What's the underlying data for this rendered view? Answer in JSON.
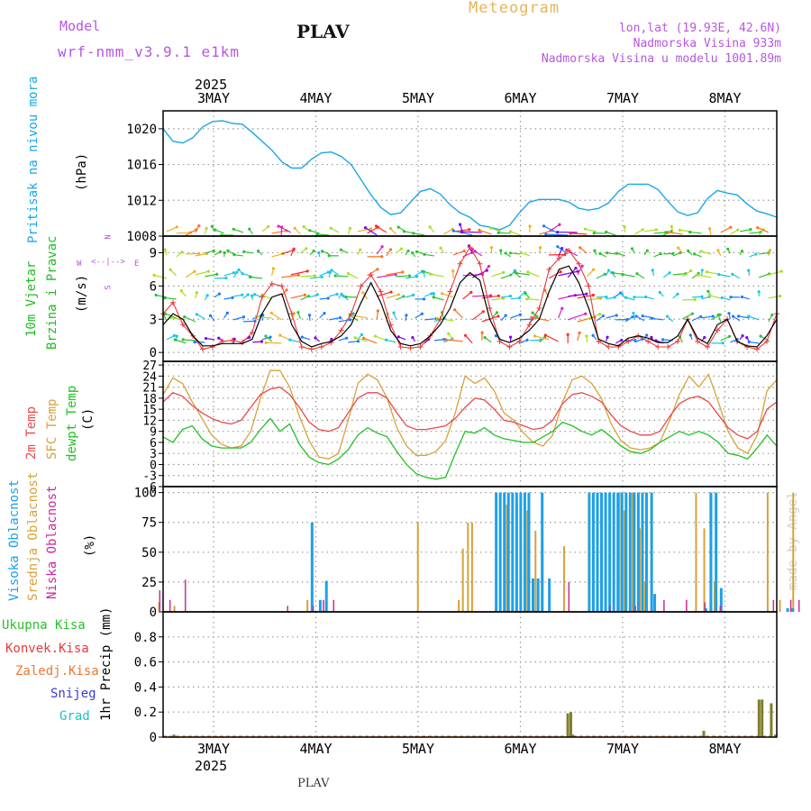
{
  "header": {
    "model_label": "Model",
    "model_name": "wrf-nmm_v3.9.1 e1km",
    "station": "PLAV",
    "title": "Meteogram",
    "coords": "lon,lat (19.93E, 42.6N)",
    "elevation": "Nadmorska Visina 933m",
    "model_elevation": "Nadmorska Visina u modelu 1001.89m",
    "year": "2025"
  },
  "footer": {
    "station": "PLAV",
    "credit": "made by Angel"
  },
  "colors": {
    "pressure": "#1aa7e6",
    "wind_label": "#22bb22",
    "temp2m": "#e84a4a",
    "sfc": "#d9a13a",
    "dew": "#22c022",
    "high_cloud": "#1ea0e8",
    "mid_cloud": "#d6a23a",
    "low_cloud": "#cc2a9a",
    "total_precip": "#2bbf2b",
    "conv": "#e83a3a",
    "freezing": "#ee7733",
    "snow": "#3b3bd8",
    "hail": "#1fc2c2",
    "precip_bar": "#7f7f2a",
    "purple_text": "#b657e0",
    "gold_text": "#e8b455"
  },
  "panels": {
    "pressure": {
      "label": "Pritisak na nivou mora",
      "unit": "(hPa)"
    },
    "wind": {
      "label1": "10m Vjetar",
      "label2": "Brzina i Pravac",
      "unit": "(m/s)",
      "compass": {
        "n": "N",
        "s": "S",
        "w": "W",
        "e": "E"
      }
    },
    "temp": {
      "label1": "2m Temp",
      "label2": "SFC Temp",
      "label3": "dewpt Temp",
      "unit": "(C)"
    },
    "cloud": {
      "label1": "Visoka Oblacnost",
      "label2": "Srednja Oblacnost",
      "label3": "Niska Oblacnost",
      "unit": "(%)"
    },
    "precip": {
      "unit": "1hr Precip (mm)",
      "legend": [
        "Ukupna Kisa",
        "Konvek.Kisa",
        "Zaledj.Kisa",
        "Snijeg",
        "Grad"
      ]
    }
  },
  "chart_data": {
    "type": "line",
    "x_days": [
      "3MAY",
      "4MAY",
      "5MAY",
      "6MAY",
      "7MAY",
      "8MAY"
    ],
    "pressure": {
      "ylim": [
        1008,
        1022
      ],
      "yticks": [
        "1008",
        "1012",
        "1016",
        "1020"
      ],
      "values": [
        1020.0,
        1018.6,
        1018.4,
        1019.0,
        1020.2,
        1020.8,
        1020.9,
        1020.6,
        1020.5,
        1019.6,
        1018.6,
        1017.6,
        1016.3,
        1015.6,
        1015.6,
        1016.6,
        1017.3,
        1017.4,
        1016.9,
        1016.0,
        1014.3,
        1012.6,
        1011.2,
        1010.4,
        1010.6,
        1011.8,
        1013.0,
        1013.3,
        1012.7,
        1011.5,
        1010.6,
        1010.1,
        1009.2,
        1009.0,
        1008.7,
        1009.2,
        1010.6,
        1011.8,
        1012.1,
        1012.1,
        1012.1,
        1011.8,
        1011.1,
        1010.9,
        1011.1,
        1011.7,
        1013.0,
        1013.8,
        1013.8,
        1013.8,
        1013.2,
        1011.9,
        1010.7,
        1010.3,
        1010.6,
        1012.2,
        1013.1,
        1012.8,
        1012.6,
        1011.6,
        1010.8,
        1010.5,
        1010.1
      ]
    },
    "wind": {
      "ylim": [
        -0.8,
        10.5
      ],
      "yticks": [
        "0",
        "3",
        "6",
        "9"
      ],
      "speed": [
        2.5,
        3.5,
        3.0,
        1.5,
        0.6,
        0.6,
        0.8,
        0.8,
        0.8,
        1.2,
        3.5,
        5.0,
        5.3,
        2.5,
        1.0,
        0.5,
        0.8,
        1.0,
        1.5,
        2.5,
        4.5,
        6.3,
        4.5,
        2.0,
        0.8,
        0.6,
        0.8,
        1.5,
        2.5,
        4.0,
        6.3,
        7.2,
        6.5,
        3.0,
        1.2,
        0.9,
        1.3,
        2.0,
        3.0,
        5.5,
        7.5,
        7.8,
        6.3,
        4.0,
        1.2,
        0.8,
        0.6,
        1.3,
        1.5,
        1.3,
        0.9,
        0.9,
        1.5,
        3.0,
        1.3,
        0.8,
        2.5,
        3.0,
        1.0,
        0.6,
        0.5,
        1.5,
        3.0
      ],
      "gust": [
        3.5,
        4.5,
        2.5,
        1.5,
        0.3,
        0.5,
        1.0,
        1.1,
        0.9,
        1.8,
        5.0,
        6.2,
        6.0,
        3.5,
        0.5,
        0.3,
        0.5,
        0.9,
        2.0,
        3.5,
        6.0,
        7.0,
        5.5,
        2.5,
        0.5,
        0.4,
        0.5,
        1.5,
        3.0,
        5.5,
        8.0,
        9.5,
        8.0,
        4.0,
        1.0,
        0.5,
        1.0,
        2.5,
        4.0,
        7.5,
        8.5,
        9.2,
        8.0,
        6.0,
        1.0,
        0.5,
        0.5,
        1.0,
        1.5,
        1.0,
        0.5,
        0.5,
        1.0,
        3.0,
        1.0,
        0.5,
        2.0,
        3.0,
        1.0,
        0.5,
        0.3,
        1.0,
        3.5
      ]
    },
    "temperature": {
      "ylim": [
        -6,
        28
      ],
      "yticks": [
        "-6",
        "-3",
        "0",
        "3",
        "6",
        "9",
        "12",
        "15",
        "18",
        "21",
        "24",
        "27"
      ],
      "t2m": [
        17.0,
        19.5,
        18.5,
        16.0,
        14.0,
        12.5,
        11.5,
        11.0,
        12.0,
        15.5,
        19.0,
        20.5,
        21.0,
        19.0,
        15.5,
        11.5,
        9.5,
        9.0,
        10.0,
        14.0,
        18.0,
        19.5,
        19.5,
        18.0,
        14.0,
        10.5,
        9.5,
        9.5,
        10.0,
        10.5,
        12.5,
        15.5,
        18.0,
        17.5,
        15.0,
        12.0,
        11.5,
        10.5,
        9.5,
        10.0,
        12.0,
        16.5,
        19.0,
        19.5,
        18.5,
        17.0,
        13.5,
        10.5,
        9.0,
        8.0,
        8.0,
        9.0,
        13.0,
        16.5,
        18.0,
        18.5,
        17.0,
        13.5,
        10.0,
        8.0,
        7.0,
        9.0,
        15.0,
        17.0
      ],
      "sfc": [
        19.0,
        23.5,
        22.0,
        17.0,
        12.5,
        8.0,
        5.5,
        4.5,
        5.0,
        9.0,
        18.0,
        25.5,
        25.5,
        21.0,
        13.0,
        6.5,
        2.0,
        1.5,
        3.0,
        12.0,
        22.0,
        24.5,
        23.0,
        18.0,
        10.0,
        5.0,
        2.5,
        2.5,
        3.5,
        6.5,
        14.0,
        24.0,
        22.0,
        23.5,
        20.0,
        14.0,
        12.0,
        8.5,
        6.0,
        5.0,
        8.0,
        17.0,
        23.0,
        24.0,
        22.0,
        18.0,
        11.0,
        6.5,
        4.5,
        4.0,
        4.5,
        6.0,
        12.0,
        19.0,
        24.0,
        21.0,
        24.5,
        17.0,
        9.0,
        4.5,
        3.0,
        8.0,
        20.0,
        23.0
      ],
      "dew": [
        7.5,
        6.0,
        9.5,
        10.5,
        7.0,
        5.0,
        4.5,
        4.5,
        4.5,
        6.0,
        9.5,
        12.5,
        9.0,
        11.0,
        5.5,
        2.0,
        0.5,
        0.0,
        1.5,
        4.0,
        8.0,
        10.0,
        8.5,
        7.5,
        3.5,
        0.0,
        -2.5,
        -3.5,
        -4.0,
        -3.5,
        3.0,
        9.0,
        8.5,
        10.0,
        8.0,
        7.0,
        6.5,
        6.0,
        6.0,
        7.5,
        9.0,
        11.5,
        10.5,
        9.0,
        8.0,
        9.5,
        7.5,
        5.0,
        3.5,
        3.0,
        4.0,
        6.0,
        7.5,
        9.0,
        8.0,
        9.0,
        8.0,
        6.0,
        3.0,
        2.5,
        1.5,
        4.5,
        8.0,
        5.0
      ]
    },
    "clouds": {
      "ylim": [
        0,
        105
      ],
      "yticks": [
        "0",
        "25",
        "50",
        "75",
        "100"
      ],
      "high": [
        [
          0.95,
          75
        ],
        [
          1.03,
          10
        ],
        [
          1.09,
          26
        ],
        [
          2.75,
          100
        ],
        [
          2.79,
          100
        ],
        [
          2.83,
          100
        ],
        [
          2.87,
          100
        ],
        [
          2.91,
          100
        ],
        [
          2.95,
          100
        ],
        [
          2.99,
          100
        ],
        [
          3.03,
          100
        ],
        [
          3.07,
          100
        ],
        [
          3.11,
          28
        ],
        [
          3.16,
          28
        ],
        [
          3.2,
          100
        ],
        [
          3.27,
          28
        ],
        [
          3.66,
          100
        ],
        [
          3.7,
          100
        ],
        [
          3.74,
          100
        ],
        [
          3.78,
          100
        ],
        [
          3.82,
          100
        ],
        [
          3.86,
          100
        ],
        [
          3.9,
          100
        ],
        [
          3.94,
          100
        ],
        [
          3.98,
          100
        ],
        [
          4.02,
          100
        ],
        [
          4.06,
          100
        ],
        [
          4.1,
          100
        ],
        [
          4.14,
          100
        ],
        [
          4.18,
          100
        ],
        [
          4.22,
          100
        ],
        [
          4.27,
          100
        ],
        [
          4.3,
          15
        ],
        [
          4.8,
          3
        ],
        [
          4.85,
          100
        ],
        [
          4.9,
          100
        ],
        [
          4.95,
          20
        ],
        [
          5.6,
          3
        ],
        [
          5.65,
          3
        ],
        [
          6.15,
          35
        ]
      ],
      "mid": [
        [
          -0.55,
          8
        ],
        [
          -0.4,
          5
        ],
        [
          0.9,
          10
        ],
        [
          1.98,
          75
        ],
        [
          2.38,
          10
        ],
        [
          2.42,
          53
        ],
        [
          2.47,
          75
        ],
        [
          2.51,
          75
        ],
        [
          2.85,
          90
        ],
        [
          2.95,
          88
        ],
        [
          3.05,
          85
        ],
        [
          3.13,
          68
        ],
        [
          3.2,
          60
        ],
        [
          3.41,
          55
        ],
        [
          3.78,
          55
        ],
        [
          3.95,
          100
        ],
        [
          4.0,
          85
        ],
        [
          4.08,
          100
        ],
        [
          4.15,
          70
        ],
        [
          4.2,
          25
        ],
        [
          4.7,
          100
        ],
        [
          4.78,
          70
        ],
        [
          4.84,
          100
        ],
        [
          4.88,
          25
        ],
        [
          5.4,
          100
        ],
        [
          5.52,
          10
        ],
        [
          5.65,
          100
        ],
        [
          5.85,
          35
        ],
        [
          6.02,
          35
        ],
        [
          6.35,
          10
        ]
      ],
      "low": [
        [
          -0.55,
          18
        ],
        [
          -0.45,
          10
        ],
        [
          -0.3,
          27
        ],
        [
          0.7,
          5
        ],
        [
          0.95,
          5
        ],
        [
          1.05,
          10
        ],
        [
          1.15,
          10
        ],
        [
          3.45,
          25
        ],
        [
          3.85,
          5
        ],
        [
          4.1,
          5
        ],
        [
          4.38,
          10
        ],
        [
          4.6,
          10
        ],
        [
          4.78,
          8
        ],
        [
          4.93,
          5
        ],
        [
          5.45,
          10
        ],
        [
          5.62,
          10
        ],
        [
          5.7,
          10
        ],
        [
          5.95,
          5
        ],
        [
          6.1,
          60
        ],
        [
          6.15,
          40
        ],
        [
          6.2,
          10
        ],
        [
          6.55,
          3
        ],
        [
          6.65,
          99
        ],
        [
          6.72,
          10
        ]
      ]
    },
    "precip": {
      "ylim": [
        0,
        1.0
      ],
      "yticks": [
        "0",
        "0.2",
        "0.4",
        "0.6",
        "0.8"
      ],
      "bars": [
        [
          -0.4,
          0.02
        ],
        [
          3.45,
          0.19
        ],
        [
          3.48,
          0.2
        ],
        [
          3.5,
          0.02
        ],
        [
          4.78,
          0.05
        ],
        [
          5.32,
          0.3
        ],
        [
          5.35,
          0.3
        ],
        [
          5.44,
          0.27
        ],
        [
          5.48,
          0.02
        ],
        [
          6.55,
          0.03
        ]
      ]
    }
  }
}
